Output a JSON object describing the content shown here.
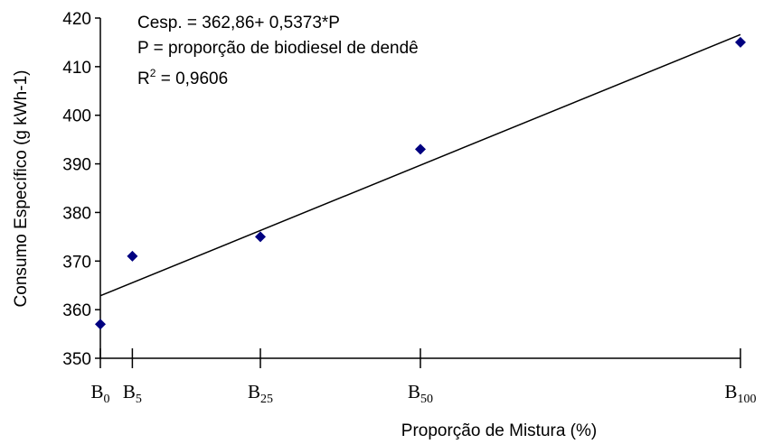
{
  "chart_data": {
    "type": "scatter",
    "title": "",
    "xlabel": "Proporção de Mistura (%)",
    "ylabel": "Consumo Específico (g kWh-1)",
    "xlim": [
      0,
      100
    ],
    "ylim": [
      350,
      420
    ],
    "yticks": [
      350,
      360,
      370,
      380,
      390,
      400,
      410,
      420
    ],
    "grid": false,
    "x_categories": [
      {
        "base": "B",
        "sub": "0",
        "x": 0
      },
      {
        "base": "B",
        "sub": "5",
        "x": 5
      },
      {
        "base": "B",
        "sub": "25",
        "x": 25
      },
      {
        "base": "B",
        "sub": "50",
        "x": 50
      },
      {
        "base": "B",
        "sub": "100",
        "x": 100
      }
    ],
    "points": [
      {
        "x": 0,
        "y": 357
      },
      {
        "x": 5,
        "y": 371
      },
      {
        "x": 25,
        "y": 375
      },
      {
        "x": 50,
        "y": 393
      },
      {
        "x": 100,
        "y": 415
      }
    ],
    "trendline": {
      "intercept": 362.86,
      "slope": 0.5373
    },
    "annotations": {
      "line1": "Cesp. = 362,86+ 0,5373*P",
      "line2": "P = proporção de biodiesel de dendê",
      "r2_label": "R",
      "r2_exp": "2",
      "r2_value": " = 0,9606"
    },
    "colors": {
      "marker": "#000080",
      "line": "#000000",
      "axis": "#000000"
    }
  }
}
